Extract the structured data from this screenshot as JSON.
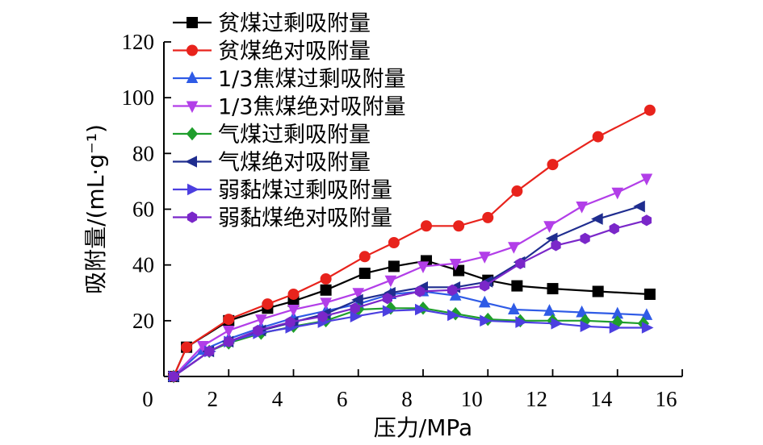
{
  "chart_data": {
    "type": "line",
    "xlabel": "压力/MPa",
    "ylabel": "吸附量/(mL·g⁻¹)",
    "xlim": [
      0,
      16
    ],
    "ylim": [
      0,
      120
    ],
    "xticks": [
      0,
      2,
      4,
      6,
      8,
      10,
      12,
      14,
      16
    ],
    "yticks": [
      20,
      40,
      60,
      80,
      100,
      120
    ],
    "grid": false,
    "legend_position": "top-left",
    "series": [
      {
        "name": "贫煤过剩吸附量",
        "color": "#000000",
        "marker": "square",
        "points": [
          [
            0.3,
            0
          ],
          [
            0.7,
            10.5
          ],
          [
            2.0,
            20.0
          ],
          [
            3.2,
            24.5
          ],
          [
            4.0,
            27.0
          ],
          [
            5.0,
            31.0
          ],
          [
            6.2,
            37.0
          ],
          [
            7.1,
            39.5
          ],
          [
            8.1,
            41.5
          ],
          [
            9.1,
            38.0
          ],
          [
            10.0,
            34.5
          ],
          [
            10.9,
            32.5
          ],
          [
            12.0,
            31.5
          ],
          [
            13.4,
            30.5
          ],
          [
            15.0,
            29.5
          ]
        ]
      },
      {
        "name": "贫煤绝对吸附量",
        "color": "#e8231c",
        "marker": "circle",
        "points": [
          [
            0.3,
            0
          ],
          [
            0.7,
            10.5
          ],
          [
            2.0,
            20.5
          ],
          [
            3.2,
            26.0
          ],
          [
            4.0,
            29.5
          ],
          [
            5.0,
            35.0
          ],
          [
            6.2,
            43.0
          ],
          [
            7.1,
            48.0
          ],
          [
            8.1,
            54.0
          ],
          [
            9.1,
            54.0
          ],
          [
            10.0,
            57.0
          ],
          [
            10.9,
            66.5
          ],
          [
            12.0,
            76.0
          ],
          [
            13.4,
            86.0
          ],
          [
            15.0,
            95.5
          ]
        ]
      },
      {
        "name": "1/3焦煤过剩吸附量",
        "color": "#2f5be6",
        "marker": "triangle-up",
        "points": [
          [
            0.3,
            0
          ],
          [
            1.2,
            9.5
          ],
          [
            2.0,
            13.5
          ],
          [
            3.0,
            17.5
          ],
          [
            4.0,
            21.0
          ],
          [
            5.0,
            23.5
          ],
          [
            6.0,
            26.0
          ],
          [
            7.0,
            29.5
          ],
          [
            8.0,
            30.5
          ],
          [
            9.0,
            29.0
          ],
          [
            9.9,
            26.5
          ],
          [
            10.8,
            24.0
          ],
          [
            11.9,
            23.5
          ],
          [
            12.9,
            23.0
          ],
          [
            14.0,
            22.5
          ],
          [
            14.9,
            22.0
          ]
        ]
      },
      {
        "name": "1/3焦煤绝对吸附量",
        "color": "#b23ee8",
        "marker": "triangle-down",
        "points": [
          [
            0.3,
            0
          ],
          [
            1.2,
            11.0
          ],
          [
            2.0,
            16.5
          ],
          [
            3.0,
            20.5
          ],
          [
            4.0,
            24.0
          ],
          [
            5.0,
            26.5
          ],
          [
            6.0,
            30.0
          ],
          [
            7.0,
            34.5
          ],
          [
            8.0,
            39.5
          ],
          [
            9.0,
            40.5
          ],
          [
            9.9,
            43.0
          ],
          [
            10.8,
            46.5
          ],
          [
            11.9,
            54.0
          ],
          [
            12.9,
            61.0
          ],
          [
            14.0,
            66.0
          ],
          [
            14.9,
            71.0
          ]
        ]
      },
      {
        "name": "气煤过剩吸附量",
        "color": "#1f9e2c",
        "marker": "diamond",
        "points": [
          [
            0.3,
            0
          ],
          [
            1.4,
            9.0
          ],
          [
            2.0,
            12.0
          ],
          [
            3.0,
            15.5
          ],
          [
            4.0,
            18.0
          ],
          [
            5.0,
            20.0
          ],
          [
            6.0,
            24.0
          ],
          [
            7.0,
            24.5
          ],
          [
            8.0,
            24.5
          ],
          [
            9.0,
            22.5
          ],
          [
            10.0,
            20.5
          ],
          [
            11.0,
            20.0
          ],
          [
            12.0,
            20.0
          ],
          [
            13.0,
            20.0
          ],
          [
            14.0,
            19.5
          ],
          [
            14.8,
            19.0
          ]
        ]
      },
      {
        "name": "气煤绝对吸附量",
        "color": "#1f2d8f",
        "marker": "triangle-left",
        "points": [
          [
            0.3,
            0
          ],
          [
            1.4,
            9.0
          ],
          [
            2.0,
            12.5
          ],
          [
            3.0,
            16.5
          ],
          [
            4.0,
            19.5
          ],
          [
            5.0,
            22.5
          ],
          [
            6.0,
            27.5
          ],
          [
            7.0,
            30.0
          ],
          [
            8.0,
            32.0
          ],
          [
            9.0,
            32.0
          ],
          [
            10.0,
            34.0
          ],
          [
            11.0,
            41.0
          ],
          [
            12.0,
            49.5
          ],
          [
            13.4,
            56.5
          ],
          [
            14.7,
            61.0
          ]
        ]
      },
      {
        "name": "弱黏煤过剩吸附量",
        "color": "#4c3fe0",
        "marker": "triangle-right",
        "points": [
          [
            0.3,
            0
          ],
          [
            1.4,
            9.0
          ],
          [
            2.0,
            12.5
          ],
          [
            2.9,
            15.5
          ],
          [
            3.9,
            17.5
          ],
          [
            4.9,
            19.5
          ],
          [
            5.9,
            21.5
          ],
          [
            6.9,
            23.5
          ],
          [
            7.9,
            24.0
          ],
          [
            8.9,
            22.0
          ],
          [
            9.9,
            20.0
          ],
          [
            11.0,
            19.5
          ],
          [
            12.1,
            19.0
          ],
          [
            13.0,
            18.0
          ],
          [
            13.9,
            17.5
          ],
          [
            14.9,
            17.5
          ]
        ]
      },
      {
        "name": "弱黏煤绝对吸附量",
        "color": "#7a27c9",
        "marker": "hexagon",
        "points": [
          [
            0.3,
            0
          ],
          [
            1.4,
            9.0
          ],
          [
            2.0,
            12.5
          ],
          [
            2.9,
            16.5
          ],
          [
            3.9,
            19.5
          ],
          [
            4.9,
            21.5
          ],
          [
            5.9,
            24.5
          ],
          [
            6.9,
            28.0
          ],
          [
            7.9,
            30.5
          ],
          [
            8.9,
            31.0
          ],
          [
            9.9,
            32.5
          ],
          [
            11.0,
            40.5
          ],
          [
            12.1,
            47.0
          ],
          [
            13.0,
            49.5
          ],
          [
            13.9,
            53.0
          ],
          [
            14.9,
            56.0
          ]
        ]
      }
    ]
  }
}
